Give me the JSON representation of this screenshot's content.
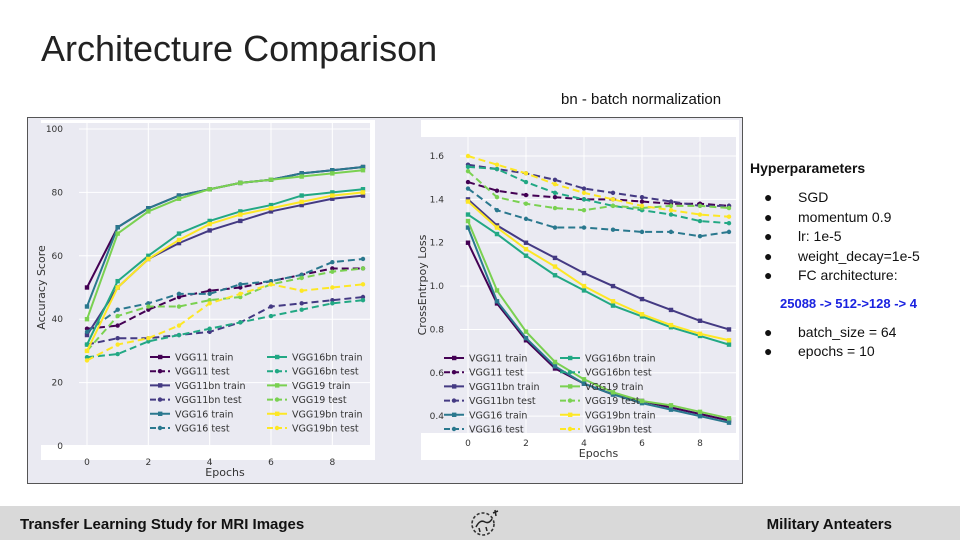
{
  "slide": {
    "title": "Architecture Comparison",
    "note": "bn - batch normalization"
  },
  "hyperparameters": {
    "heading": "Hyperparameters",
    "items_top": [
      "SGD",
      "momentum 0.9",
      "lr: 1e-5",
      "weight_decay=1e-5",
      "FC architecture:"
    ],
    "architecture": "25088 -> 512->128 -> 4",
    "items_bottom": [
      "batch_size = 64",
      "epochs = 10"
    ],
    "bullet": "●"
  },
  "footer": {
    "left": "Transfer Learning Study for MRI Images",
    "right": "Military Anteaters",
    "logo_icon": "anteater-logo-icon"
  },
  "colors": {
    "VGG11": "#440154",
    "VGG11bn": "#443a83",
    "VGG16": "#2a788e",
    "VGG16bn": "#22a884",
    "VGG19": "#7ad151",
    "VGG19bn": "#fde725",
    "panel_bg": "#eaeaf2",
    "arch_text": "#1a22e0"
  },
  "chart_data": [
    {
      "type": "line",
      "xlabel": "Epochs",
      "ylabel": "Accuracy Score",
      "xlim": [
        0,
        9
      ],
      "ylim": [
        0,
        100
      ],
      "xticks": [
        0,
        2,
        4,
        6,
        8
      ],
      "yticks": [
        0,
        20,
        40,
        60,
        80,
        100
      ],
      "grid": true,
      "legend_position": "lower-center",
      "x": [
        0,
        1,
        2,
        3,
        4,
        5,
        6,
        7,
        8,
        9
      ],
      "series": [
        {
          "name": "VGG11 train",
          "model": "VGG11",
          "style": "train",
          "values": [
            50,
            69,
            75,
            79,
            81,
            83,
            84,
            86,
            87,
            88
          ]
        },
        {
          "name": "VGG11 test",
          "model": "VGG11",
          "style": "test",
          "values": [
            37,
            38,
            43,
            47,
            49,
            50,
            52,
            54,
            56,
            56
          ]
        },
        {
          "name": "VGG11bn train",
          "model": "VGG11bn",
          "style": "train",
          "values": [
            35,
            50,
            59,
            64,
            68,
            71,
            74,
            76,
            78,
            79
          ]
        },
        {
          "name": "VGG11bn test",
          "model": "VGG11bn",
          "style": "test",
          "values": [
            32,
            34,
            34,
            35,
            36,
            39,
            44,
            45,
            46,
            47
          ]
        },
        {
          "name": "VGG16 train",
          "model": "VGG16",
          "style": "train",
          "values": [
            44,
            69,
            75,
            79,
            81,
            83,
            84,
            86,
            87,
            88
          ]
        },
        {
          "name": "VGG16 test",
          "model": "VGG16",
          "style": "test",
          "values": [
            36,
            43,
            45,
            48,
            48,
            51,
            52,
            54,
            58,
            59
          ]
        },
        {
          "name": "VGG16bn train",
          "model": "VGG16bn",
          "style": "train",
          "values": [
            32,
            52,
            60,
            67,
            71,
            74,
            76,
            79,
            80,
            81
          ]
        },
        {
          "name": "VGG16bn test",
          "model": "VGG16bn",
          "style": "test",
          "values": [
            28,
            29,
            33,
            35,
            37,
            39,
            41,
            43,
            45,
            46
          ]
        },
        {
          "name": "VGG19 train",
          "model": "VGG19",
          "style": "train",
          "values": [
            40,
            67,
            74,
            78,
            81,
            83,
            84,
            85,
            86,
            87
          ]
        },
        {
          "name": "VGG19 test",
          "model": "VGG19",
          "style": "test",
          "values": [
            30,
            41,
            44,
            44,
            46,
            47,
            51,
            53,
            55,
            56
          ]
        },
        {
          "name": "VGG19bn train",
          "model": "VGG19bn",
          "style": "train",
          "values": [
            30,
            50,
            59,
            65,
            70,
            73,
            75,
            77,
            79,
            80
          ]
        },
        {
          "name": "VGG19bn test",
          "model": "VGG19bn",
          "style": "test",
          "values": [
            27,
            32,
            34,
            38,
            45,
            48,
            51,
            49,
            50,
            51
          ]
        }
      ]
    },
    {
      "type": "line",
      "xlabel": "Epochs",
      "ylabel": "CrossEntrpoy Loss",
      "xlim": [
        0,
        9
      ],
      "ylim": [
        0.35,
        1.66
      ],
      "xticks": [
        0,
        2,
        4,
        6,
        8
      ],
      "yticks": [
        0.4,
        0.6,
        0.8,
        1.0,
        1.2,
        1.4,
        1.6
      ],
      "grid": true,
      "legend_position": "lower-center",
      "x": [
        0,
        1,
        2,
        3,
        4,
        5,
        6,
        7,
        8,
        9
      ],
      "series": [
        {
          "name": "VGG11 train",
          "model": "VGG11",
          "style": "train",
          "values": [
            1.2,
            0.92,
            0.75,
            0.62,
            0.55,
            0.5,
            0.47,
            0.44,
            0.41,
            0.38
          ]
        },
        {
          "name": "VGG11 test",
          "model": "VGG11",
          "style": "test",
          "values": [
            1.48,
            1.44,
            1.42,
            1.41,
            1.4,
            1.4,
            1.39,
            1.38,
            1.38,
            1.37
          ]
        },
        {
          "name": "VGG11bn train",
          "model": "VGG11bn",
          "style": "train",
          "values": [
            1.4,
            1.28,
            1.2,
            1.13,
            1.06,
            1.0,
            0.94,
            0.89,
            0.84,
            0.8
          ]
        },
        {
          "name": "VGG11bn test",
          "model": "VGG11bn",
          "style": "test",
          "values": [
            1.56,
            1.54,
            1.52,
            1.49,
            1.45,
            1.43,
            1.41,
            1.39,
            1.37,
            1.37
          ]
        },
        {
          "name": "VGG16 train",
          "model": "VGG16",
          "style": "train",
          "values": [
            1.27,
            0.93,
            0.76,
            0.63,
            0.55,
            0.5,
            0.46,
            0.43,
            0.4,
            0.37
          ]
        },
        {
          "name": "VGG16 test",
          "model": "VGG16",
          "style": "test",
          "values": [
            1.45,
            1.35,
            1.31,
            1.27,
            1.27,
            1.26,
            1.25,
            1.25,
            1.23,
            1.25
          ]
        },
        {
          "name": "VGG16bn train",
          "model": "VGG16bn",
          "style": "train",
          "values": [
            1.33,
            1.24,
            1.14,
            1.05,
            0.98,
            0.91,
            0.86,
            0.81,
            0.77,
            0.73
          ]
        },
        {
          "name": "VGG16bn test",
          "model": "VGG16bn",
          "style": "test",
          "values": [
            1.55,
            1.54,
            1.48,
            1.43,
            1.4,
            1.37,
            1.35,
            1.33,
            1.3,
            1.29
          ]
        },
        {
          "name": "VGG19 train",
          "model": "VGG19",
          "style": "train",
          "values": [
            1.3,
            0.98,
            0.79,
            0.65,
            0.57,
            0.51,
            0.47,
            0.45,
            0.42,
            0.39
          ]
        },
        {
          "name": "VGG19 test",
          "model": "VGG19",
          "style": "test",
          "values": [
            1.53,
            1.41,
            1.38,
            1.36,
            1.35,
            1.37,
            1.36,
            1.37,
            1.37,
            1.36
          ]
        },
        {
          "name": "VGG19bn train",
          "model": "VGG19bn",
          "style": "train",
          "values": [
            1.39,
            1.27,
            1.17,
            1.09,
            1.0,
            0.93,
            0.87,
            0.82,
            0.78,
            0.75
          ]
        },
        {
          "name": "VGG19bn test",
          "model": "VGG19bn",
          "style": "test",
          "values": [
            1.6,
            1.56,
            1.52,
            1.47,
            1.43,
            1.4,
            1.37,
            1.35,
            1.33,
            1.32
          ]
        }
      ]
    }
  ]
}
